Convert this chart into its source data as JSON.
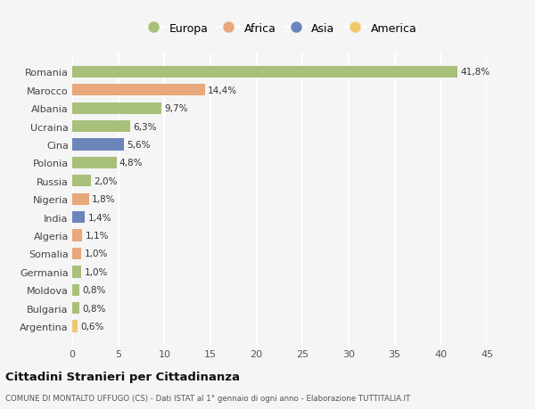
{
  "categories": [
    "Romania",
    "Marocco",
    "Albania",
    "Ucraina",
    "Cina",
    "Polonia",
    "Russia",
    "Nigeria",
    "India",
    "Algeria",
    "Somalia",
    "Germania",
    "Moldova",
    "Bulgaria",
    "Argentina"
  ],
  "values": [
    41.8,
    14.4,
    9.7,
    6.3,
    5.6,
    4.8,
    2.0,
    1.8,
    1.4,
    1.1,
    1.0,
    1.0,
    0.8,
    0.8,
    0.6
  ],
  "labels": [
    "41,8%",
    "14,4%",
    "9,7%",
    "6,3%",
    "5,6%",
    "4,8%",
    "2,0%",
    "1,8%",
    "1,4%",
    "1,1%",
    "1,0%",
    "1,0%",
    "0,8%",
    "0,8%",
    "0,6%"
  ],
  "continents": [
    "Europa",
    "Africa",
    "Europa",
    "Europa",
    "Asia",
    "Europa",
    "Europa",
    "Africa",
    "Asia",
    "Africa",
    "Africa",
    "Europa",
    "Europa",
    "Europa",
    "America"
  ],
  "colors": {
    "Europa": "#a8c07a",
    "Africa": "#e8a87c",
    "Asia": "#6b85bb",
    "America": "#f0c96e"
  },
  "legend_order": [
    "Europa",
    "Africa",
    "Asia",
    "America"
  ],
  "title": "Cittadini Stranieri per Cittadinanza",
  "subtitle": "COMUNE DI MONTALTO UFFUGO (CS) - Dati ISTAT al 1° gennaio di ogni anno - Elaborazione TUTTITALIA.IT",
  "xlim": [
    0,
    45
  ],
  "xticks": [
    0,
    5,
    10,
    15,
    20,
    25,
    30,
    35,
    40,
    45
  ],
  "background_color": "#f5f5f5",
  "grid_color": "#e8e8e8",
  "bar_height": 0.65
}
